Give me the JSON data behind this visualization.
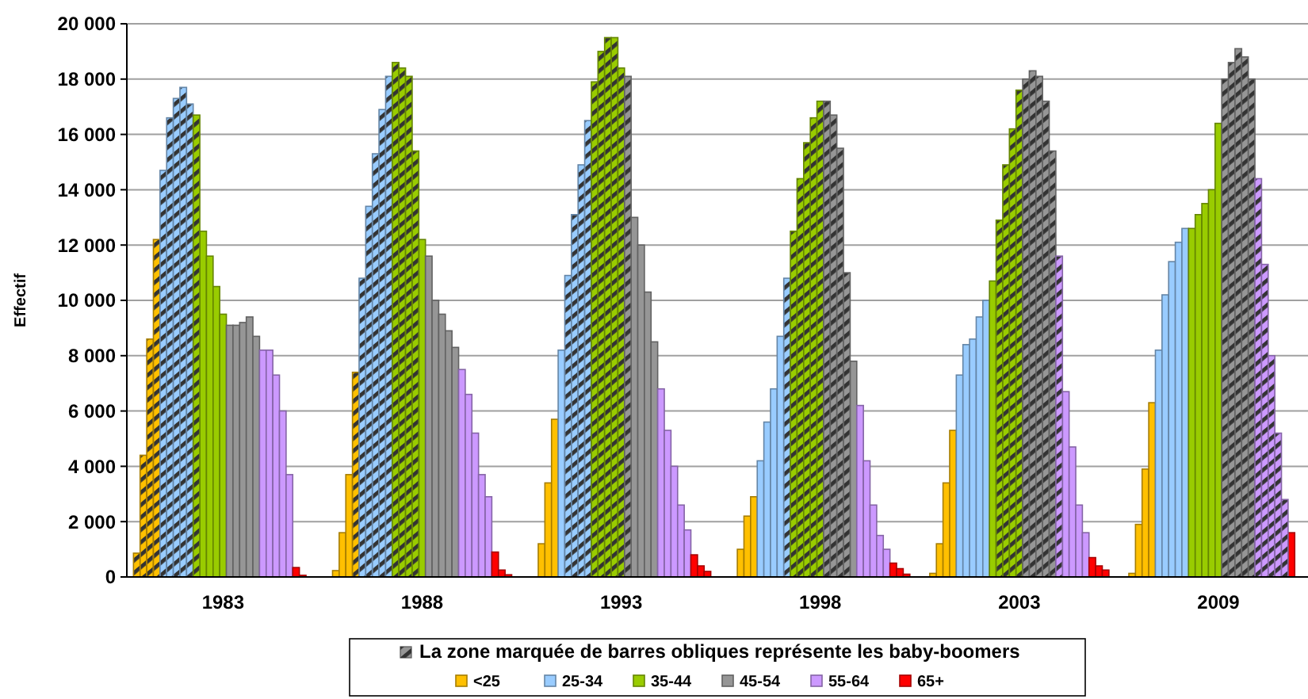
{
  "chart_data": {
    "type": "bar",
    "ylabel": "Effectif",
    "ylim": [
      0,
      20000
    ],
    "yticks": [
      {
        "value": 0,
        "label": "0"
      },
      {
        "value": 2000,
        "label": "2 000"
      },
      {
        "value": 4000,
        "label": "4 000"
      },
      {
        "value": 6000,
        "label": "6 000"
      },
      {
        "value": 8000,
        "label": "8 000"
      },
      {
        "value": 10000,
        "label": "10 000"
      },
      {
        "value": 12000,
        "label": "12 000"
      },
      {
        "value": 14000,
        "label": "14 000"
      },
      {
        "value": 16000,
        "label": "16 000"
      },
      {
        "value": 18000,
        "label": "18 000"
      },
      {
        "value": 20000,
        "label": "20 000"
      }
    ],
    "grid": "y",
    "legend": "bottom",
    "categories": [
      null,
      null,
      null,
      null,
      null,
      null,
      null,
      null,
      null,
      null,
      null,
      null,
      null,
      null,
      "1983",
      null,
      null,
      null,
      null,
      null,
      null,
      null,
      null,
      null,
      null,
      null,
      null,
      null,
      null,
      null,
      null,
      null,
      null,
      null,
      null,
      null,
      null,
      null,
      null,
      null,
      null,
      null,
      null,
      null,
      "1988",
      null,
      null,
      null,
      null,
      null,
      null,
      null,
      null,
      null,
      null,
      null,
      null,
      null,
      null,
      null,
      null,
      null,
      null,
      null,
      null,
      null,
      null,
      null,
      null,
      null,
      null,
      null,
      null,
      null,
      "1993",
      null,
      null,
      null,
      null,
      null,
      null,
      null,
      null,
      null,
      null,
      null,
      null,
      null,
      null,
      null,
      null,
      null,
      null,
      null,
      null,
      null,
      null,
      null,
      null,
      null,
      null,
      null,
      null,
      null,
      "1998",
      null,
      null,
      null,
      null,
      null,
      null,
      null,
      null,
      null,
      null,
      null,
      null,
      null,
      null,
      null,
      null,
      null,
      null,
      null,
      null,
      null,
      null,
      null,
      null,
      null,
      null,
      null,
      null,
      null,
      "2003",
      null,
      null,
      null,
      null,
      null,
      null,
      null,
      null,
      null,
      null,
      null,
      null,
      null,
      null,
      null,
      null,
      null,
      null,
      null,
      null,
      null,
      null,
      null,
      null,
      null,
      null,
      null,
      null,
      null,
      "2009",
      null,
      null,
      null,
      null,
      null,
      null,
      null,
      null,
      null,
      null,
      null,
      null,
      null
    ],
    "series": [
      {
        "name": "<25",
        "color": "#ffc000",
        "values": [
          null,
          null,
          null,
          null,
          null,
          null,
          null,
          null,
          null,
          null,
          null,
          null,
          null,
          null,
          null,
          null,
          null,
          null,
          null,
          null,
          null,
          null,
          null,
          null,
          null,
          null,
          null,
          null,
          null,
          null,
          null,
          230,
          1600,
          3700,
          null,
          null,
          null,
          null,
          null,
          null,
          null,
          null,
          null,
          null,
          null,
          null,
          null,
          null,
          null,
          null,
          null,
          null,
          null,
          null,
          null,
          null,
          null,
          null,
          null,
          null,
          null,
          null,
          1200,
          3400,
          5700,
          null,
          null,
          null,
          null,
          null,
          null,
          null,
          null,
          null,
          null,
          null,
          null,
          null,
          null,
          null,
          null,
          null,
          null,
          null,
          null,
          null,
          null,
          null,
          null,
          null,
          null,
          null,
          1000,
          2200,
          2900,
          null,
          null,
          null,
          null,
          null,
          null,
          null,
          null,
          null,
          null,
          null,
          null,
          null,
          null,
          null,
          null,
          null,
          null,
          null,
          null,
          null,
          null,
          null,
          null,
          null,
          null,
          130,
          1200,
          3400,
          5300,
          null,
          null,
          null,
          null,
          null,
          null,
          null,
          null,
          null,
          null,
          null,
          null,
          null,
          null,
          null,
          null,
          null,
          null,
          null,
          null,
          null,
          null,
          null,
          null,
          null,
          null,
          130,
          1900,
          3900,
          6300,
          null,
          null,
          null,
          null,
          null,
          null,
          null,
          null,
          null,
          null,
          null,
          null,
          null,
          null,
          null,
          null,
          null,
          null,
          null,
          null,
          null,
          null,
          null
        ]
      },
      {
        "name": "25-34",
        "color": "#99ccff",
        "values": [
          null,
          null,
          null,
          null,
          null,
          null,
          null,
          null,
          null,
          null,
          null,
          null,
          null,
          null,
          null,
          null,
          null,
          null,
          null,
          null,
          null,
          null,
          null,
          null,
          null,
          null,
          null,
          null,
          null,
          null,
          null,
          null,
          null,
          null,
          null,
          null,
          null,
          null,
          null,
          null,
          null,
          null,
          null,
          null,
          null,
          null,
          null,
          null,
          null,
          null,
          null,
          null,
          null,
          null,
          null,
          null,
          null,
          null,
          null,
          null,
          null,
          null,
          null,
          null,
          null,
          8200,
          null,
          null,
          null,
          null,
          null,
          null,
          null,
          null,
          null,
          null,
          null,
          null,
          null,
          null,
          null,
          null,
          null,
          null,
          null,
          null,
          null,
          null,
          null,
          null,
          null,
          null,
          null,
          null,
          null,
          4200,
          5600,
          6800,
          8700,
          null,
          null,
          null,
          null,
          null,
          null,
          null,
          null,
          null,
          null,
          null,
          null,
          null,
          null,
          null,
          null,
          null,
          null,
          null,
          null,
          null,
          null,
          null,
          null,
          null,
          null,
          7300,
          8400,
          8600,
          9400,
          10000,
          null,
          null,
          null,
          null,
          null,
          null,
          null,
          null,
          null,
          null,
          null,
          null,
          null,
          null,
          null,
          null,
          null,
          null,
          null,
          null,
          null,
          null,
          null,
          null,
          null,
          8200,
          10200,
          11400,
          12100,
          12600,
          null,
          null,
          null,
          null,
          null,
          null,
          null,
          null,
          null,
          null,
          null,
          null,
          null,
          null,
          null,
          null,
          null,
          null
        ]
      },
      {
        "name": "35-44",
        "color": "#99cc00",
        "values": [
          null,
          null,
          null,
          null,
          null,
          null,
          null,
          null,
          null,
          null,
          null,
          12500,
          11600,
          10500,
          9500,
          null,
          null,
          null,
          null,
          null,
          null,
          null,
          null,
          null,
          null,
          null,
          null,
          null,
          null,
          null,
          null,
          null,
          null,
          null,
          null,
          null,
          null,
          null,
          null,
          null,
          null,
          null,
          null,
          null,
          12200,
          null,
          null,
          null,
          null,
          null,
          null,
          null,
          null,
          null,
          null,
          null,
          null,
          null,
          null,
          null,
          null,
          null,
          null,
          null,
          null,
          null,
          null,
          null,
          null,
          null,
          null,
          null,
          null,
          null,
          null,
          null,
          null,
          null,
          null,
          null,
          null,
          null,
          null,
          null,
          null,
          null,
          null,
          null,
          null,
          null,
          null,
          null,
          null,
          null,
          null,
          null,
          null,
          null,
          null,
          null,
          null,
          null,
          null,
          null,
          null,
          null,
          null,
          null,
          null,
          null,
          null,
          null,
          null,
          null,
          null,
          null,
          null,
          null,
          null,
          null,
          null,
          null,
          null,
          null,
          null,
          null,
          null,
          null,
          null,
          null,
          10700,
          null,
          null,
          null,
          null,
          null,
          null,
          null,
          null,
          null,
          null,
          null,
          null,
          null,
          null,
          null,
          null,
          null,
          null,
          null,
          null,
          null,
          null,
          null,
          null,
          null,
          null,
          null,
          null,
          null,
          12600,
          13100,
          13500,
          14000,
          16400,
          null,
          null,
          null,
          null,
          null,
          null,
          null,
          null,
          null,
          null,
          null,
          null,
          null
        ]
      },
      {
        "name": "45-54",
        "color": "#969696",
        "values": [
          null,
          null,
          null,
          null,
          null,
          null,
          null,
          null,
          null,
          null,
          null,
          null,
          null,
          null,
          null,
          9100,
          9100,
          9200,
          9400,
          8700,
          null,
          null,
          null,
          null,
          null,
          null,
          null,
          null,
          null,
          null,
          null,
          null,
          null,
          null,
          null,
          null,
          null,
          null,
          null,
          null,
          null,
          null,
          null,
          null,
          null,
          11600,
          10000,
          9500,
          8900,
          8300,
          null,
          null,
          null,
          null,
          null,
          null,
          null,
          null,
          null,
          null,
          null,
          null,
          null,
          null,
          null,
          null,
          null,
          null,
          null,
          null,
          null,
          null,
          null,
          null,
          null,
          null,
          13000,
          12000,
          10300,
          8500,
          null,
          null,
          null,
          null,
          null,
          null,
          null,
          null,
          null,
          null,
          null,
          null,
          null,
          null,
          null,
          null,
          null,
          null,
          null,
          null,
          null,
          null,
          null,
          null,
          null,
          null,
          null,
          null,
          null,
          7800,
          null,
          null,
          null,
          null,
          null,
          null,
          null,
          null,
          null,
          null,
          null,
          null,
          null,
          null,
          null,
          null,
          null,
          null,
          null,
          null,
          null,
          null,
          null,
          null,
          null,
          null,
          null,
          null,
          null,
          null,
          null,
          null,
          null,
          null,
          null,
          null,
          null,
          null,
          null,
          null,
          null,
          null,
          null,
          null,
          null,
          null,
          null,
          null,
          null,
          null,
          null,
          null,
          null,
          null,
          null,
          null,
          null,
          null,
          null,
          null,
          null,
          null,
          null,
          null,
          null,
          null,
          null,
          null
        ]
      },
      {
        "name": "55-64",
        "color": "#cc99ff",
        "values": [
          null,
          null,
          null,
          null,
          null,
          null,
          null,
          null,
          null,
          null,
          null,
          null,
          null,
          null,
          null,
          null,
          null,
          null,
          null,
          null,
          8200,
          8200,
          7300,
          6000,
          3700,
          null,
          null,
          null,
          null,
          null,
          null,
          null,
          null,
          null,
          null,
          null,
          null,
          null,
          null,
          null,
          null,
          null,
          null,
          null,
          null,
          null,
          null,
          null,
          null,
          null,
          7500,
          6600,
          5200,
          3700,
          2900,
          null,
          null,
          null,
          null,
          null,
          null,
          null,
          null,
          null,
          null,
          null,
          null,
          null,
          null,
          null,
          null,
          null,
          null,
          null,
          null,
          null,
          null,
          null,
          null,
          null,
          6800,
          5300,
          4000,
          2600,
          1700,
          null,
          null,
          null,
          null,
          null,
          null,
          null,
          null,
          null,
          null,
          null,
          null,
          null,
          null,
          null,
          null,
          null,
          null,
          null,
          null,
          null,
          null,
          null,
          null,
          null,
          6200,
          4200,
          2600,
          1500,
          1000,
          null,
          null,
          null,
          null,
          null,
          null,
          null,
          null,
          null,
          null,
          null,
          null,
          null,
          null,
          null,
          null,
          null,
          null,
          null,
          null,
          null,
          null,
          null,
          null,
          null,
          null,
          6700,
          4700,
          2600,
          1600,
          null,
          null,
          null,
          null,
          null,
          null,
          null,
          null,
          null,
          null,
          null,
          null,
          null,
          null,
          null,
          null,
          null,
          null,
          null,
          null,
          null,
          null,
          null,
          null,
          null,
          null,
          null,
          null,
          null,
          null,
          null,
          null,
          null
        ]
      },
      {
        "name": "65+",
        "color": "#ff0000",
        "values": [
          null,
          null,
          null,
          null,
          null,
          null,
          null,
          null,
          null,
          null,
          null,
          null,
          null,
          null,
          null,
          null,
          null,
          null,
          null,
          null,
          null,
          null,
          null,
          null,
          null,
          340,
          60,
          null,
          null,
          null,
          null,
          null,
          null,
          null,
          null,
          null,
          null,
          null,
          null,
          null,
          null,
          null,
          null,
          null,
          null,
          null,
          null,
          null,
          null,
          null,
          null,
          null,
          null,
          null,
          null,
          900,
          250,
          80,
          null,
          null,
          null,
          null,
          null,
          null,
          null,
          null,
          null,
          null,
          null,
          null,
          null,
          null,
          null,
          null,
          null,
          null,
          null,
          null,
          null,
          null,
          null,
          null,
          null,
          null,
          null,
          800,
          400,
          200,
          null,
          null,
          null,
          null,
          null,
          null,
          null,
          null,
          null,
          null,
          null,
          null,
          null,
          null,
          null,
          null,
          null,
          null,
          null,
          null,
          null,
          null,
          null,
          null,
          null,
          null,
          null,
          500,
          300,
          100,
          null,
          null,
          null,
          null,
          null,
          null,
          null,
          null,
          null,
          null,
          null,
          null,
          null,
          null,
          null,
          null,
          null,
          null,
          null,
          null,
          null,
          null,
          null,
          null,
          null,
          null,
          null,
          700,
          400,
          250,
          null,
          null,
          null,
          null,
          null,
          null,
          null,
          null,
          null,
          null,
          null,
          null,
          null,
          null,
          null,
          null,
          null,
          null,
          null,
          null,
          null,
          null,
          null,
          null,
          null,
          null,
          null,
          1600,
          null,
          null
        ]
      },
      {
        "name": "La zone marquée de barres obliques représente les baby-boomers",
        "color": "#333333",
        "values": [
          null,
          860,
          4400,
          8600,
          12200,
          14700,
          16600,
          17300,
          17700,
          17100,
          16700,
          null,
          null,
          null,
          null,
          null,
          null,
          null,
          null,
          null,
          null,
          null,
          null,
          null,
          null,
          null,
          null,
          null,
          null,
          null,
          null,
          null,
          null,
          null,
          7400,
          10800,
          13400,
          15300,
          16900,
          18100,
          18600,
          18400,
          18100,
          15400,
          null,
          null,
          null,
          null,
          null,
          null,
          null,
          null,
          null,
          null,
          null,
          null,
          null,
          null,
          null,
          null,
          null,
          null,
          null,
          null,
          null,
          null,
          10900,
          13100,
          14900,
          16500,
          17900,
          19000,
          19500,
          19500,
          18400,
          18100,
          null,
          null,
          null,
          null,
          null,
          null,
          null,
          null,
          null,
          null,
          null,
          null,
          null,
          null,
          null,
          null,
          null,
          null,
          null,
          null,
          null,
          null,
          null,
          10800,
          12500,
          14400,
          15700,
          16600,
          17200,
          17200,
          16700,
          15500,
          11000,
          null,
          null,
          null,
          null,
          null,
          null,
          null,
          null,
          null,
          null,
          null,
          null,
          null,
          null,
          null,
          null,
          null,
          null,
          null,
          null,
          null,
          null,
          12900,
          14900,
          16200,
          17600,
          18000,
          18300,
          18100,
          17200,
          15400,
          11600,
          null,
          null,
          null,
          null,
          null,
          null,
          null,
          null,
          null,
          null,
          null,
          null,
          null,
          null,
          null,
          null,
          null,
          null,
          null,
          null,
          null,
          null,
          null,
          null,
          18000,
          18600,
          19100,
          18800,
          18000,
          14400,
          11300,
          8000,
          5200,
          2800,
          null,
          null,
          null
        ],
        "colors": [
          null,
          "#ffc000",
          "#ffc000",
          "#ffc000",
          "#ffc000",
          "#99ccff",
          "#99ccff",
          "#99ccff",
          "#99ccff",
          "#99ccff",
          "#99cc00",
          null,
          null,
          null,
          null,
          null,
          null,
          null,
          null,
          null,
          null,
          null,
          null,
          null,
          null,
          null,
          null,
          null,
          null,
          null,
          null,
          null,
          null,
          null,
          "#ffc000",
          "#99ccff",
          "#99ccff",
          "#99ccff",
          "#99ccff",
          "#99ccff",
          "#99cc00",
          "#99cc00",
          "#99cc00",
          "#99cc00",
          null,
          null,
          null,
          null,
          null,
          null,
          null,
          null,
          null,
          null,
          null,
          null,
          null,
          null,
          null,
          null,
          null,
          null,
          null,
          null,
          null,
          null,
          "#99ccff",
          "#99ccff",
          "#99ccff",
          "#99ccff",
          "#99cc00",
          "#99cc00",
          "#99cc00",
          "#99cc00",
          "#99cc00",
          "#969696",
          null,
          null,
          null,
          null,
          null,
          null,
          null,
          null,
          null,
          null,
          null,
          null,
          null,
          null,
          null,
          null,
          null,
          null,
          null,
          null,
          null,
          null,
          null,
          "#99ccff",
          "#99cc00",
          "#99cc00",
          "#99cc00",
          "#99cc00",
          "#99cc00",
          "#969696",
          "#969696",
          "#969696",
          "#969696",
          null,
          null,
          null,
          null,
          null,
          null,
          null,
          null,
          null,
          null,
          null,
          null,
          null,
          null,
          null,
          null,
          null,
          null,
          null,
          null,
          null,
          null,
          "#99cc00",
          "#99cc00",
          "#99cc00",
          "#99cc00",
          "#969696",
          "#969696",
          "#969696",
          "#969696",
          "#969696",
          "#cc99ff",
          null,
          null,
          null,
          null,
          null,
          null,
          null,
          null,
          null,
          null,
          null,
          null,
          null,
          null,
          null,
          null,
          null,
          null,
          null,
          null,
          null,
          null,
          null,
          null,
          "#969696",
          "#969696",
          "#969696",
          "#969696",
          "#969696",
          "#cc99ff",
          "#cc99ff",
          "#cc99ff",
          "#cc99ff",
          "#cc99ff",
          null,
          null,
          null
        ]
      }
    ]
  }
}
